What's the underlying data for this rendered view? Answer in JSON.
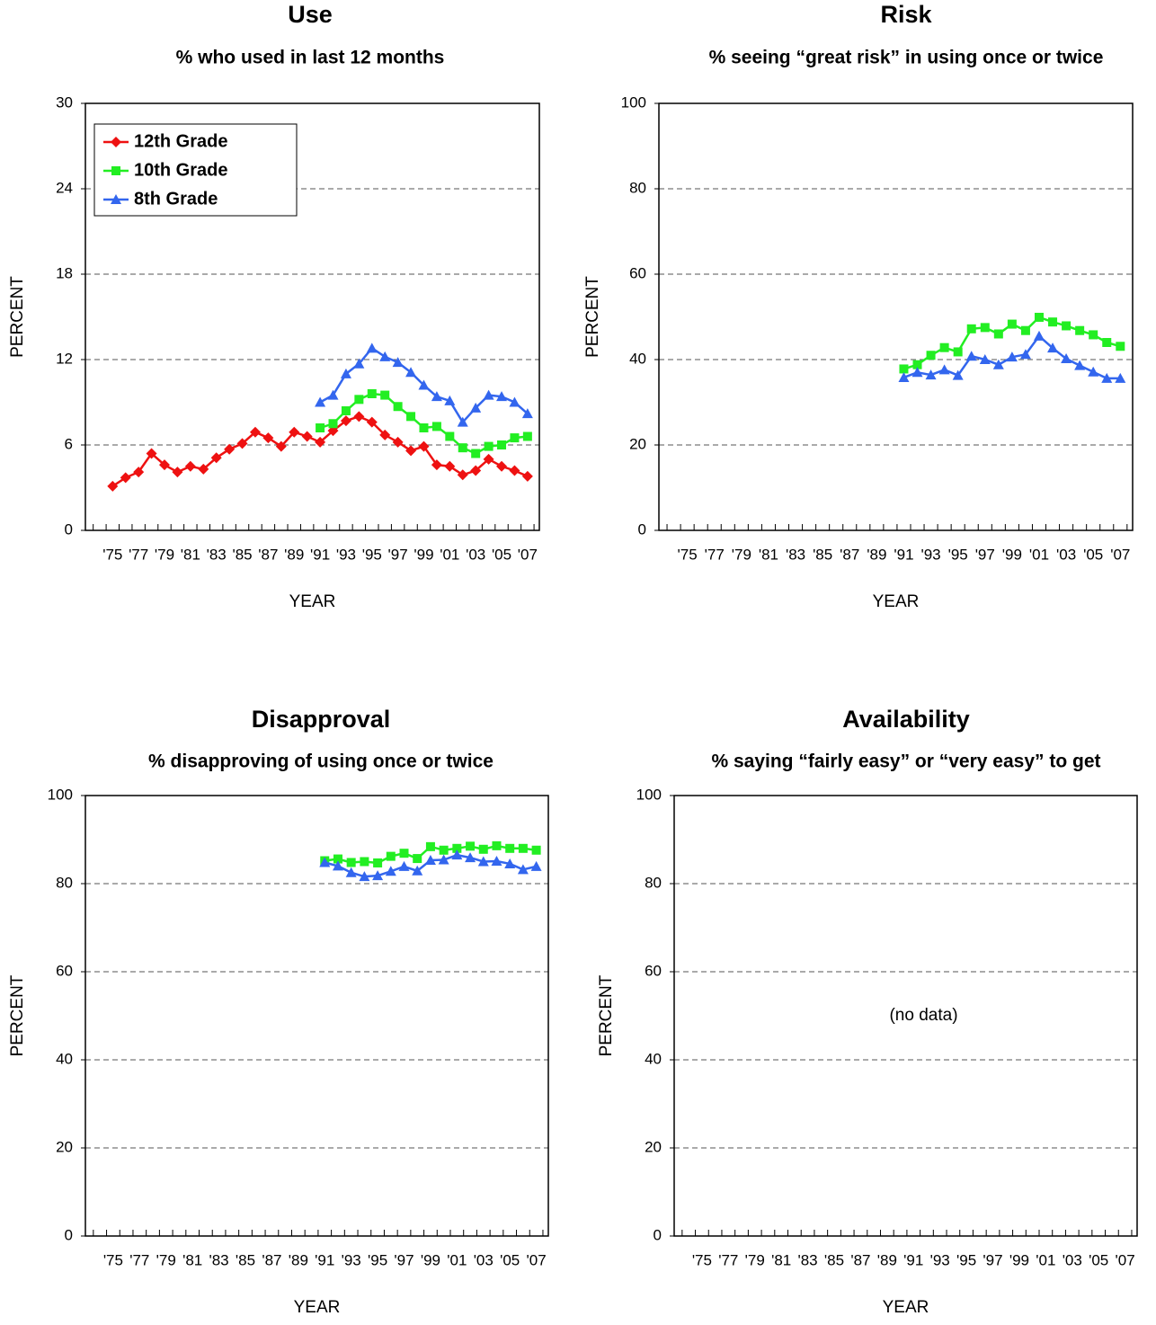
{
  "chart_data": [
    {
      "type": "line",
      "title": "Use",
      "subtitle": "% who used in last 12 months",
      "x_label": "YEAR",
      "y_label": "PERCENT",
      "categories": [
        "'75",
        null,
        "'77",
        null,
        "'79",
        null,
        "'81",
        null,
        "'83",
        null,
        "'85",
        null,
        "'87",
        null,
        "'89",
        null,
        "'91",
        null,
        "'93",
        null,
        "'95",
        null,
        "'97",
        null,
        "'99",
        null,
        "'01",
        null,
        "'03",
        null,
        "'05",
        null,
        "'07"
      ],
      "series": [
        {
          "name": "12th Grade",
          "color": "#ee1111",
          "marker": "diamond",
          "values": [
            3.1,
            3.7,
            4.1,
            5.4,
            4.6,
            4.1,
            4.5,
            4.3,
            5.1,
            5.7,
            6.1,
            6.9,
            6.5,
            5.9,
            6.9,
            6.6,
            6.2,
            7.0,
            7.7,
            8.0,
            7.6,
            6.7,
            6.2,
            5.6,
            5.9,
            4.6,
            4.5,
            3.9,
            4.2,
            5.0,
            4.5,
            4.2,
            3.8
          ]
        },
        {
          "name": "10th Grade",
          "color": "#22ee22",
          "marker": "square",
          "values": [
            null,
            null,
            null,
            null,
            null,
            null,
            null,
            null,
            null,
            null,
            null,
            null,
            null,
            null,
            null,
            null,
            7.2,
            7.5,
            8.4,
            9.2,
            9.6,
            9.5,
            8.7,
            8.0,
            7.2,
            7.3,
            6.6,
            5.8,
            5.4,
            5.9,
            6.0,
            6.5,
            6.6
          ]
        },
        {
          "name": "8th Grade",
          "color": "#3366ee",
          "marker": "triangle",
          "values": [
            null,
            null,
            null,
            null,
            null,
            null,
            null,
            null,
            null,
            null,
            null,
            null,
            null,
            null,
            null,
            null,
            9.0,
            9.5,
            11.0,
            11.7,
            12.8,
            12.2,
            11.8,
            11.1,
            10.2,
            9.4,
            9.1,
            7.6,
            8.6,
            9.5,
            9.4,
            9.0,
            8.2
          ]
        }
      ],
      "ylim": [
        0,
        30
      ],
      "yticks": [
        0,
        6,
        12,
        18,
        24,
        30
      ],
      "grid": true,
      "legend": "upper left"
    },
    {
      "type": "line",
      "title": "Risk",
      "subtitle": "% seeing “great risk” in using once or twice",
      "x_label": "YEAR",
      "y_label": "PERCENT",
      "categories": [
        "'75",
        null,
        "'77",
        null,
        "'79",
        null,
        "'81",
        null,
        "'83",
        null,
        "'85",
        null,
        "'87",
        null,
        "'89",
        null,
        "'91",
        null,
        "'93",
        null,
        "'95",
        null,
        "'97",
        null,
        "'99",
        null,
        "'01",
        null,
        "'03",
        null,
        "'05",
        null,
        "'07"
      ],
      "series": [
        {
          "name": "10th Grade",
          "color": "#22ee22",
          "marker": "square",
          "values": [
            null,
            null,
            null,
            null,
            null,
            null,
            null,
            null,
            null,
            null,
            null,
            null,
            null,
            null,
            null,
            null,
            37.8,
            38.8,
            41.0,
            42.8,
            41.8,
            47.2,
            47.5,
            46.0,
            48.3,
            46.8,
            49.9,
            48.8,
            47.9,
            46.8,
            45.8,
            44.0,
            43.1
          ]
        },
        {
          "name": "8th Grade",
          "color": "#3366ee",
          "marker": "triangle",
          "values": [
            null,
            null,
            null,
            null,
            null,
            null,
            null,
            null,
            null,
            null,
            null,
            null,
            null,
            null,
            null,
            null,
            35.8,
            37.0,
            36.4,
            37.6,
            36.3,
            40.8,
            40.0,
            38.8,
            40.6,
            41.2,
            45.5,
            42.7,
            40.2,
            38.6,
            37.1,
            35.6,
            35.6
          ]
        }
      ],
      "ylim": [
        0,
        100
      ],
      "yticks": [
        0,
        20,
        40,
        60,
        80,
        100
      ],
      "grid": true
    },
    {
      "type": "line",
      "title": "Disapproval",
      "subtitle": "% disapproving of using once or twice",
      "x_label": "YEAR",
      "y_label": "PERCENT",
      "categories": [
        "'75",
        null,
        "'77",
        null,
        "'79",
        null,
        "'81",
        null,
        "'83",
        null,
        "'85",
        null,
        "'87",
        null,
        "'89",
        null,
        "'91",
        null,
        "'93",
        null,
        "'95",
        null,
        "'97",
        null,
        "'99",
        null,
        "'01",
        null,
        "'03",
        null,
        "'05",
        null,
        "'07"
      ],
      "series": [
        {
          "name": "10th Grade",
          "color": "#22ee22",
          "marker": "square",
          "values": [
            null,
            null,
            null,
            null,
            null,
            null,
            null,
            null,
            null,
            null,
            null,
            null,
            null,
            null,
            null,
            null,
            85.2,
            85.6,
            84.8,
            85.0,
            84.7,
            86.2,
            86.9,
            85.7,
            88.4,
            87.6,
            88.0,
            88.5,
            87.8,
            88.6,
            88.0,
            88.0,
            87.6
          ]
        },
        {
          "name": "8th Grade",
          "color": "#3366ee",
          "marker": "triangle",
          "values": [
            null,
            null,
            null,
            null,
            null,
            null,
            null,
            null,
            null,
            null,
            null,
            null,
            null,
            null,
            null,
            null,
            84.8,
            84.0,
            82.5,
            81.6,
            81.8,
            82.8,
            83.9,
            82.9,
            85.3,
            85.4,
            86.5,
            85.9,
            85.0,
            85.1,
            84.5,
            83.2,
            83.9
          ]
        }
      ],
      "ylim": [
        0,
        100
      ],
      "yticks": [
        0,
        20,
        40,
        60,
        80,
        100
      ],
      "grid": true
    },
    {
      "type": "line",
      "title": "Availability",
      "subtitle": "% saying “fairly easy” or “very easy” to get",
      "x_label": "YEAR",
      "y_label": "PERCENT",
      "categories": [
        "'75",
        null,
        "'77",
        null,
        "'79",
        null,
        "'81",
        null,
        "'83",
        null,
        "'85",
        null,
        "'87",
        null,
        "'89",
        null,
        "'91",
        null,
        "'93",
        null,
        "'95",
        null,
        "'97",
        null,
        "'99",
        null,
        "'01",
        null,
        "'03",
        null,
        "'05",
        null,
        "'07"
      ],
      "series": [],
      "annotation": "(no data)",
      "ylim": [
        0,
        100
      ],
      "yticks": [
        0,
        20,
        40,
        60,
        80,
        100
      ],
      "grid": true
    }
  ]
}
